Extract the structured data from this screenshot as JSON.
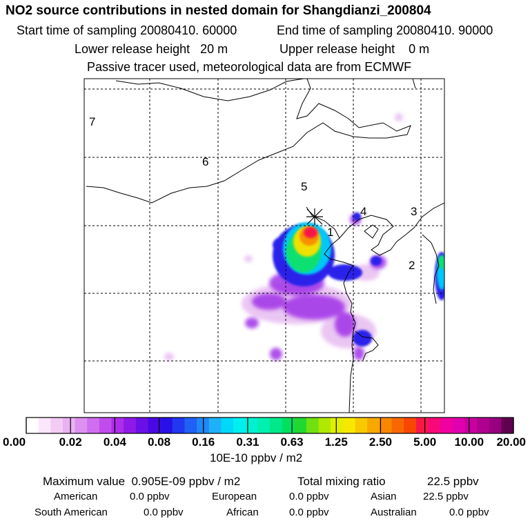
{
  "header": {
    "title": "NO2 source contributions in nested domain for Shangdianzi_200804",
    "start_label": "Start time of sampling 20080410. 60000",
    "end_label": "End time of sampling 20080410. 90000",
    "lower_label": "Lower release height   20 m",
    "upper_label": "Upper release height    0 m",
    "tracer_label": "Passive tracer used, meteorological data are from ECMWF"
  },
  "chart_data": {
    "type": "heatmap",
    "title": "NO2 source contributions in nested domain for Shangdianzi_200804",
    "region_labels": [
      "1",
      "2",
      "3",
      "4",
      "5",
      "6",
      "7"
    ],
    "colorbar": {
      "unit": "10E-10 ppbv / m2",
      "tick_labels": [
        "0.00",
        "0.02",
        "0.04",
        "0.08",
        "0.16",
        "0.31",
        "0.63",
        "1.25",
        "2.50",
        "5.00",
        "10.00",
        "20.00"
      ],
      "colors": [
        "#ffffff",
        "#fbe6fb",
        "#f3ccf5",
        "#eab2f2",
        "#dd90f0",
        "#cf6eee",
        "#c04cec",
        "#ae2cea",
        "#8e1ae8",
        "#6a10e6",
        "#4a08e4",
        "#2a10e8",
        "#2038f0",
        "#2060f4",
        "#2088f6",
        "#20b0f8",
        "#00d8f8",
        "#00f0f0",
        "#00f0d0",
        "#00f0b0",
        "#00e88a",
        "#00e060",
        "#20d830",
        "#70e010",
        "#b0e800",
        "#e0f000",
        "#f8e800",
        "#f8c800",
        "#f8a800",
        "#f88800",
        "#f86800",
        "#f84800",
        "#f81848",
        "#f80878",
        "#f000a0",
        "#e000b0",
        "#c800a0",
        "#b00090",
        "#980080",
        "#600050"
      ]
    }
  },
  "stats": {
    "max_label": "Maximum value  0.905E-09 ppbv / m2",
    "total_label": "Total mixing ratio",
    "total_value": "22.5 ppbv",
    "american_label": "American",
    "american_value": "0.0 ppbv",
    "european_label": "European",
    "european_value": "0.0 ppbv",
    "asian_label": "Asian",
    "asian_value": "22.5 ppbv",
    "south_american_label": "South American",
    "south_american_value": "0.0 ppbv",
    "african_label": "African",
    "african_value": "0.0 ppbv",
    "australian_label": "Australian",
    "australian_value": "0.0 ppbv"
  }
}
